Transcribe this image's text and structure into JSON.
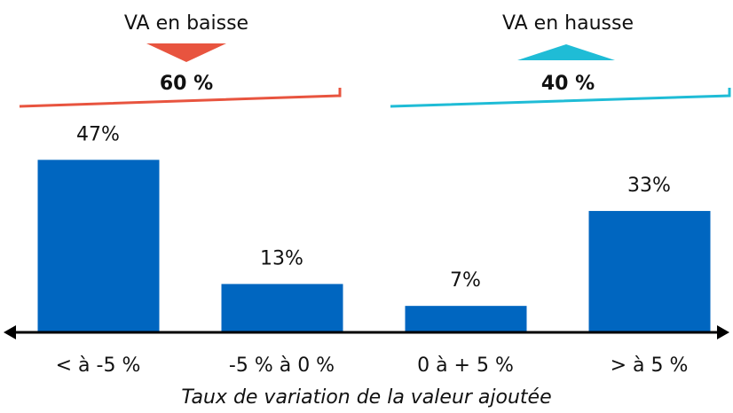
{
  "chart_data": {
    "type": "bar",
    "categories": [
      "< à -5 %",
      "-5 % à 0 %",
      "0 à + 5 %",
      "> à 5 %"
    ],
    "values": [
      47,
      13,
      7,
      33
    ],
    "value_labels": [
      "47%",
      "13%",
      "7%",
      "33%"
    ],
    "color": "#0066c0",
    "ylim": [
      0,
      50
    ],
    "x_label": "Taux de variation de la valeur ajoutée",
    "groups": [
      {
        "label": "VA en baisse",
        "total_label": "60 %",
        "color": "#e8543f",
        "direction": "down"
      },
      {
        "label": "VA en hausse",
        "total_label": "40 %",
        "color": "#1fbcd6",
        "direction": "up"
      }
    ]
  }
}
